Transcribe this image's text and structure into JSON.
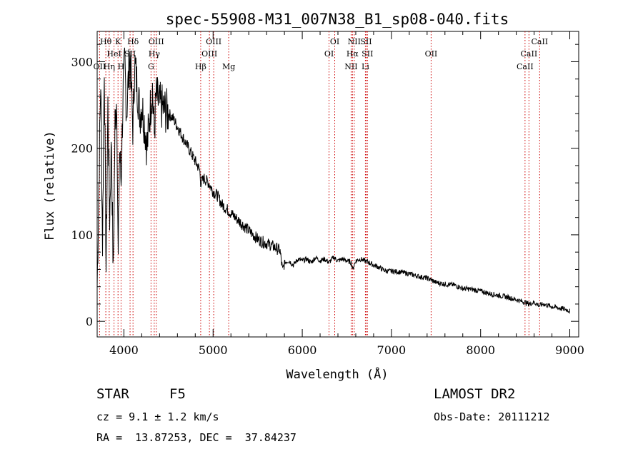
{
  "chart_data": {
    "type": "line",
    "title": "spec-55908-M31_007N38_B1_sp08-040.fits",
    "xlabel": "Wavelength (Å)",
    "ylabel": "Flux (relative)",
    "xlim": [
      3700,
      9100
    ],
    "ylim": [
      -18,
      335
    ],
    "xticks": [
      4000,
      5000,
      6000,
      7000,
      8000,
      9000
    ],
    "yticks": [
      0,
      100,
      200,
      300
    ],
    "series": [
      {
        "x": [
          3700,
          3720,
          3740,
          3760,
          3780,
          3800,
          3820,
          3840,
          3860,
          3880,
          3900,
          3920,
          3935,
          3950,
          3968,
          3990,
          4010,
          4030,
          4050,
          4070,
          4090,
          4102,
          4120,
          4150,
          4180,
          4200,
          4230,
          4260,
          4290,
          4320,
          4340,
          4360,
          4400,
          4450,
          4500,
          4550,
          4600,
          4650,
          4700,
          4750,
          4800,
          4850,
          4861,
          4900,
          4950,
          5000,
          5050,
          5100,
          5150,
          5200,
          5250,
          5300,
          5350,
          5400,
          5450,
          5500,
          5550,
          5600,
          5650,
          5700,
          5750,
          5780,
          5800,
          5850,
          5900,
          5950,
          6000,
          6050,
          6100,
          6150,
          6200,
          6250,
          6300,
          6350,
          6400,
          6450,
          6500,
          6550,
          6563,
          6600,
          6650,
          6700,
          6750,
          6800,
          6850,
          6900,
          6950,
          7000,
          7100,
          7200,
          7300,
          7400,
          7500,
          7600,
          7700,
          7800,
          7900,
          8000,
          8100,
          8200,
          8300,
          8400,
          8500,
          8542,
          8600,
          8662,
          8700,
          8800,
          8900,
          8950,
          9000
        ],
        "y": [
          40,
          160,
          280,
          90,
          300,
          60,
          250,
          120,
          210,
          50,
          230,
          260,
          60,
          200,
          160,
          260,
          300,
          240,
          280,
          310,
          250,
          220,
          300,
          270,
          240,
          250,
          230,
          200,
          240,
          270,
          215,
          260,
          250,
          245,
          240,
          235,
          225,
          215,
          205,
          195,
          185,
          175,
          160,
          165,
          160,
          150,
          145,
          135,
          130,
          125,
          120,
          115,
          110,
          105,
          100,
          95,
          92,
          90,
          88,
          85,
          82,
          58,
          68,
          70,
          65,
          72,
          70,
          72,
          68,
          74,
          70,
          72,
          68,
          74,
          70,
          72,
          70,
          68,
          60,
          70,
          72,
          70,
          68,
          65,
          63,
          60,
          58,
          58,
          57,
          55,
          52,
          50,
          45,
          43,
          42,
          38,
          37,
          35,
          32,
          30,
          28,
          25,
          22,
          20,
          22,
          18,
          20,
          17,
          15,
          14,
          12
        ]
      }
    ],
    "lines": [
      {
        "label": "Hθ",
        "x": 3797,
        "row": 0
      },
      {
        "label": "OII",
        "x": 3727,
        "row": 2
      },
      {
        "label": "Hη",
        "x": 3835,
        "row": 2
      },
      {
        "label": "HeI",
        "x": 3889,
        "row": 1
      },
      {
        "label": "K",
        "x": 3934,
        "row": 0
      },
      {
        "label": "SII",
        "x": 4069,
        "row": 1
      },
      {
        "label": "H",
        "x": 3968,
        "row": 2
      },
      {
        "label": "Hδ",
        "x": 4102,
        "row": 0
      },
      {
        "label": "OIII",
        "x": 4363,
        "row": 0
      },
      {
        "label": "Hγ",
        "x": 4340,
        "row": 1
      },
      {
        "label": "G",
        "x": 4304,
        "row": 2
      },
      {
        "label": "Hβ",
        "x": 4861,
        "row": 2
      },
      {
        "label": "OIII",
        "x": 5007,
        "row": 0
      },
      {
        "label": "OIII",
        "x": 4959,
        "row": 1
      },
      {
        "label": "Mg",
        "x": 5175,
        "row": 2
      },
      {
        "label": "OI",
        "x": 6364,
        "row": 0
      },
      {
        "label": "OI",
        "x": 6300,
        "row": 1
      },
      {
        "label": "NII",
        "x": 6583,
        "row": 0
      },
      {
        "label": "SII",
        "x": 6716,
        "row": 0
      },
      {
        "label": "Hα",
        "x": 6563,
        "row": 1
      },
      {
        "label": "SII",
        "x": 6731,
        "row": 1
      },
      {
        "label": "NII",
        "x": 6548,
        "row": 2
      },
      {
        "label": "Li",
        "x": 6708,
        "row": 2
      },
      {
        "label": "OII",
        "x": 7445,
        "row": 1
      },
      {
        "label": "CaII",
        "x": 8662,
        "row": 0
      },
      {
        "label": "CaII",
        "x": 8542,
        "row": 1
      },
      {
        "label": "CaII",
        "x": 8498,
        "row": 2
      }
    ],
    "line_color": "#cc0000",
    "legend": "none",
    "grid": false
  },
  "info": {
    "class_label": "STAR",
    "subclass": "F5",
    "survey": "LAMOST DR2",
    "cz": "cz = 9.1 ± 1.2 km/s",
    "obs_date": "Obs-Date: 20111212",
    "radec": "RA =  13.87253, DEC =  37.84237"
  }
}
